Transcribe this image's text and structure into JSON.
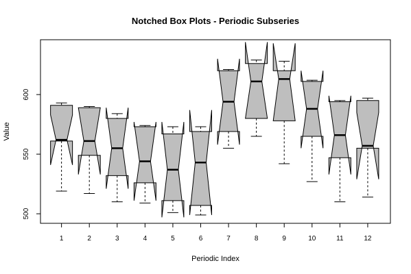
{
  "chart_data": {
    "type": "boxplot",
    "title": "Notched Box Plots - Periodic Subseries",
    "xlabel": "Periodic Index",
    "ylabel": "Value",
    "ylim": [
      492,
      646
    ],
    "y_ticks": [
      500,
      550,
      600
    ],
    "categories": [
      "1",
      "2",
      "3",
      "4",
      "5",
      "6",
      "7",
      "8",
      "9",
      "10",
      "11",
      "12"
    ],
    "boxes": [
      {
        "min": 519,
        "q1": 561,
        "median": 562,
        "q3": 591,
        "max": 593,
        "notch_low": 541,
        "notch_high": 583
      },
      {
        "min": 517,
        "q1": 549,
        "median": 561,
        "q3": 589,
        "max": 590,
        "notch_low": 533,
        "notch_high": 589
      },
      {
        "min": 510,
        "q1": 532,
        "median": 555,
        "q3": 580,
        "max": 584,
        "notch_low": 521,
        "notch_high": 589
      },
      {
        "min": 509,
        "q1": 526,
        "median": 544,
        "q3": 573,
        "max": 574,
        "notch_low": 511,
        "notch_high": 577
      },
      {
        "min": 501,
        "q1": 511,
        "median": 537,
        "q3": 567,
        "max": 573,
        "notch_low": 497,
        "notch_high": 577
      },
      {
        "min": 499,
        "q1": 507,
        "median": 543,
        "q3": 569,
        "max": 573,
        "notch_low": 499,
        "notch_high": 587
      },
      {
        "min": 555,
        "q1": 569,
        "median": 594,
        "q3": 620,
        "max": 621,
        "notch_low": 558,
        "notch_high": 630
      },
      {
        "min": 565,
        "q1": 580,
        "median": 611,
        "q3": 626,
        "max": 629,
        "notch_low": 580,
        "notch_high": 644
      },
      {
        "min": 542,
        "q1": 578,
        "median": 613,
        "q3": 620,
        "max": 628,
        "notch_low": 578,
        "notch_high": 643
      },
      {
        "min": 527,
        "q1": 565,
        "median": 588,
        "q3": 611,
        "max": 612,
        "notch_low": 555,
        "notch_high": 620
      },
      {
        "min": 510,
        "q1": 547,
        "median": 566,
        "q3": 594,
        "max": 595,
        "notch_low": 533,
        "notch_high": 599
      },
      {
        "min": 514,
        "q1": 555,
        "median": 557,
        "q3": 595,
        "max": 597,
        "notch_low": 529,
        "notch_high": 585
      }
    ]
  }
}
